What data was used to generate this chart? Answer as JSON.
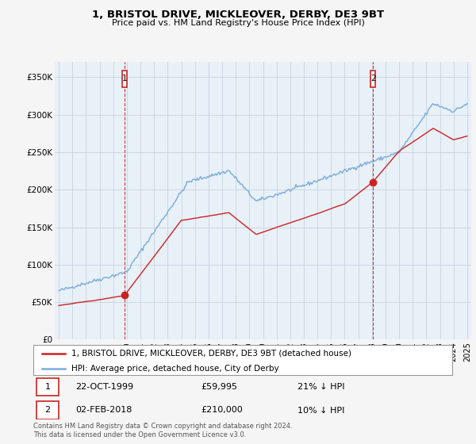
{
  "title": "1, BRISTOL DRIVE, MICKLEOVER, DERBY, DE3 9BT",
  "subtitle": "Price paid vs. HM Land Registry's House Price Index (HPI)",
  "legend_line1": "1, BRISTOL DRIVE, MICKLEOVER, DERBY, DE3 9BT (detached house)",
  "legend_line2": "HPI: Average price, detached house, City of Derby",
  "sale1_label": "1",
  "sale1_date": "22-OCT-1999",
  "sale1_price": "£59,995",
  "sale1_hpi": "21% ↓ HPI",
  "sale2_label": "2",
  "sale2_date": "02-FEB-2018",
  "sale2_price": "£210,000",
  "sale2_hpi": "10% ↓ HPI",
  "footer": "Contains HM Land Registry data © Crown copyright and database right 2024.\nThis data is licensed under the Open Government Licence v3.0.",
  "hpi_color": "#7aabdb",
  "price_color": "#cc2222",
  "marker_color": "#cc2222",
  "plot_bg_color": "#e8f0f8",
  "background_color": "#f5f5f5",
  "grid_color": "#c8d4e0",
  "ylim": [
    0,
    370000
  ],
  "yticks": [
    0,
    50000,
    100000,
    150000,
    200000,
    250000,
    300000,
    350000
  ],
  "ytick_labels": [
    "£0",
    "£50K",
    "£100K",
    "£150K",
    "£200K",
    "£250K",
    "£300K",
    "£350K"
  ],
  "sale1_year": 1999.81,
  "sale1_value": 59995,
  "sale2_year": 2018.09,
  "sale2_value": 210000,
  "xlim_left": 1994.7,
  "xlim_right": 2025.3
}
